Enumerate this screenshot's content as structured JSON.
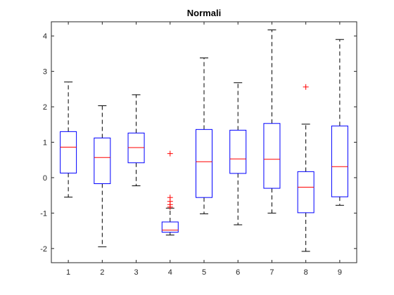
{
  "chart_data": {
    "type": "boxplot",
    "title": "Normali",
    "xlabel": "",
    "ylabel": "",
    "categories": [
      "1",
      "2",
      "3",
      "4",
      "5",
      "6",
      "7",
      "8",
      "9"
    ],
    "ylim": [
      -2.4,
      4.4
    ],
    "yticks": [
      -2,
      -1,
      0,
      1,
      2,
      3,
      4
    ],
    "grid": false,
    "colors": {
      "box": "#0000ff",
      "median": "#ff0000",
      "whisker": "#000000",
      "outlier": "#ff0000",
      "axis": "#262626"
    },
    "boxes": [
      {
        "category": "1",
        "whisker_low": -0.55,
        "q1": 0.13,
        "median": 0.86,
        "q3": 1.3,
        "whisker_high": 2.7,
        "outliers": []
      },
      {
        "category": "2",
        "whisker_low": -1.95,
        "q1": -0.17,
        "median": 0.57,
        "q3": 1.12,
        "whisker_high": 2.03,
        "outliers": []
      },
      {
        "category": "3",
        "whisker_low": -0.23,
        "q1": 0.42,
        "median": 0.85,
        "q3": 1.26,
        "whisker_high": 2.34,
        "outliers": []
      },
      {
        "category": "4",
        "whisker_low": -1.62,
        "q1": -1.54,
        "median": -1.48,
        "q3": -1.25,
        "whisker_high": -0.86,
        "outliers": [
          0.68,
          -0.56,
          -0.67,
          -0.76,
          -0.83
        ]
      },
      {
        "category": "5",
        "whisker_low": -1.02,
        "q1": -0.56,
        "median": 0.45,
        "q3": 1.36,
        "whisker_high": 3.38,
        "outliers": []
      },
      {
        "category": "6",
        "whisker_low": -1.33,
        "q1": 0.12,
        "median": 0.53,
        "q3": 1.34,
        "whisker_high": 2.68,
        "outliers": []
      },
      {
        "category": "7",
        "whisker_low": -1.0,
        "q1": -0.3,
        "median": 0.52,
        "q3": 1.53,
        "whisker_high": 4.17,
        "outliers": []
      },
      {
        "category": "8",
        "whisker_low": -2.08,
        "q1": -0.99,
        "median": -0.27,
        "q3": 0.17,
        "whisker_high": 1.51,
        "outliers": [
          2.56
        ]
      },
      {
        "category": "9",
        "whisker_low": -0.78,
        "q1": -0.54,
        "median": 0.31,
        "q3": 1.46,
        "whisker_high": 3.9,
        "outliers": []
      }
    ]
  }
}
